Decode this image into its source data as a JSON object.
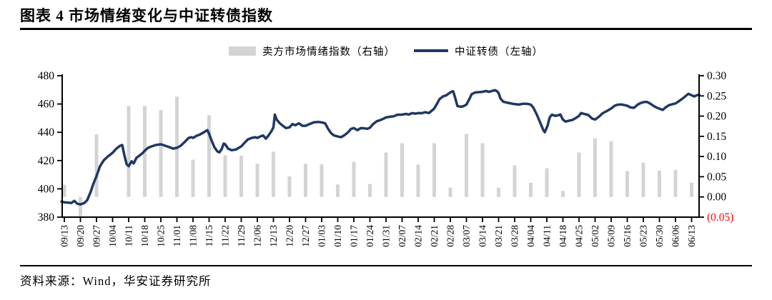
{
  "title": "图表 4 市场情绪变化与中证转债指数",
  "source": "资料来源：Wind，华安证券研究所",
  "colors": {
    "line": "#1f3864",
    "bar": "#d4d4d4",
    "axis": "#000000",
    "text": "#000000",
    "negative_tick": "#ff0000"
  },
  "legend": [
    {
      "label": "卖方市场情绪指数（右轴）",
      "type": "bar"
    },
    {
      "label": "中证转债（左轴）",
      "type": "line"
    }
  ],
  "chart_data": {
    "type": "bar+line",
    "title": "图表 4 市场情绪变化与中证转债指数",
    "grid": "off",
    "legend_position": "top-center",
    "categories": [
      "09/13",
      "09/20",
      "09/27",
      "10/04",
      "10/11",
      "10/18",
      "10/25",
      "11/01",
      "11/08",
      "11/15",
      "11/22",
      "11/29",
      "12/06",
      "12/13",
      "12/20",
      "12/27",
      "01/03",
      "01/10",
      "01/17",
      "01/24",
      "01/31",
      "02/07",
      "02/14",
      "02/21",
      "02/28",
      "03/07",
      "03/14",
      "03/21",
      "03/28",
      "04/04",
      "04/11",
      "04/18",
      "04/25",
      "05/02",
      "05/09",
      "05/16",
      "05/23",
      "05/30",
      "06/06",
      "06/13"
    ],
    "left_axis": {
      "label": "中证转债",
      "min": 380,
      "max": 480,
      "ticks": [
        480,
        460,
        440,
        420,
        400,
        380
      ]
    },
    "right_axis": {
      "label": "卖方市场情绪指数",
      "min": -0.05,
      "max": 0.3,
      "tick_labels": [
        "0.30",
        "0.25",
        "0.20",
        "0.15",
        "0.10",
        "0.05",
        "0.00",
        "(0.05)"
      ],
      "tick_values": [
        0.3,
        0.25,
        0.2,
        0.15,
        0.1,
        0.05,
        0.0,
        -0.05
      ]
    },
    "series": [
      {
        "name": "卖方市场情绪指数（右轴）",
        "type": "bar",
        "axis": "right",
        "values": [
          0.03,
          -0.048,
          0.155,
          null,
          0.225,
          0.225,
          0.215,
          0.248,
          0.092,
          0.202,
          0.103,
          0.102,
          0.082,
          0.112,
          0.051,
          0.082,
          0.081,
          0.031,
          0.087,
          0.032,
          0.11,
          0.133,
          0.08,
          0.133,
          0.023,
          0.156,
          0.133,
          0.023,
          0.078,
          0.035,
          0.071,
          0.015,
          0.11,
          0.145,
          0.138,
          0.064,
          0.085,
          0.065,
          0.067,
          0.035
        ]
      },
      {
        "name": "中证转债（左轴）",
        "type": "line",
        "axis": "left",
        "points": [
          [
            -0.18,
            391
          ],
          [
            0,
            390.5
          ],
          [
            0.3,
            390.2
          ],
          [
            0.44,
            390
          ],
          [
            0.62,
            391.5
          ],
          [
            0.8,
            389.5
          ],
          [
            1,
            389
          ],
          [
            1.24,
            390
          ],
          [
            1.42,
            392
          ],
          [
            1.64,
            398
          ],
          [
            1.82,
            404
          ],
          [
            2,
            409
          ],
          [
            2.22,
            416
          ],
          [
            2.44,
            420
          ],
          [
            2.67,
            422.5
          ],
          [
            3,
            425.5
          ],
          [
            3.24,
            428.5
          ],
          [
            3.47,
            430.5
          ],
          [
            3.6,
            431
          ],
          [
            3.73,
            424
          ],
          [
            3.87,
            417.5
          ],
          [
            4,
            416
          ],
          [
            4.18,
            419.5
          ],
          [
            4.31,
            418
          ],
          [
            4.49,
            422
          ],
          [
            4.67,
            423.5
          ],
          [
            4.89,
            425.5
          ],
          [
            5,
            427
          ],
          [
            5.2,
            429
          ],
          [
            5.42,
            430
          ],
          [
            5.69,
            431
          ],
          [
            6,
            431.5
          ],
          [
            6.27,
            430.5
          ],
          [
            6.53,
            429.5
          ],
          [
            6.76,
            428.5
          ],
          [
            7,
            429
          ],
          [
            7.24,
            430.5
          ],
          [
            7.51,
            433.5
          ],
          [
            7.73,
            436
          ],
          [
            7.91,
            436.5
          ],
          [
            8,
            436
          ],
          [
            8.22,
            437.5
          ],
          [
            8.44,
            438.5
          ],
          [
            8.67,
            440
          ],
          [
            8.89,
            441.5
          ],
          [
            9,
            439
          ],
          [
            9.16,
            434
          ],
          [
            9.33,
            429.5
          ],
          [
            9.51,
            426.5
          ],
          [
            9.64,
            425.8
          ],
          [
            9.78,
            428
          ],
          [
            9.91,
            432
          ],
          [
            10,
            431.5
          ],
          [
            10.18,
            428.5
          ],
          [
            10.4,
            427.3
          ],
          [
            10.67,
            427.8
          ],
          [
            10.84,
            429
          ],
          [
            11,
            430
          ],
          [
            11.2,
            432.5
          ],
          [
            11.42,
            435
          ],
          [
            11.64,
            436
          ],
          [
            11.87,
            436.5
          ],
          [
            12,
            436
          ],
          [
            12.18,
            437
          ],
          [
            12.36,
            437.8
          ],
          [
            12.53,
            435.5
          ],
          [
            12.71,
            438
          ],
          [
            12.89,
            441
          ],
          [
            13,
            443.5
          ],
          [
            13.09,
            452.5
          ],
          [
            13.2,
            449
          ],
          [
            13.38,
            446.5
          ],
          [
            13.6,
            444.5
          ],
          [
            13.78,
            443
          ],
          [
            14,
            443.5
          ],
          [
            14.18,
            445.8
          ],
          [
            14.36,
            445
          ],
          [
            14.58,
            446.3
          ],
          [
            14.8,
            444.6
          ],
          [
            15,
            444.6
          ],
          [
            15.24,
            445.8
          ],
          [
            15.51,
            447
          ],
          [
            15.78,
            447.3
          ],
          [
            16,
            447
          ],
          [
            16.22,
            446.3
          ],
          [
            16.4,
            442.5
          ],
          [
            16.58,
            439.5
          ],
          [
            16.76,
            437.8
          ],
          [
            17,
            437
          ],
          [
            17.2,
            436.5
          ],
          [
            17.42,
            438
          ],
          [
            17.64,
            440
          ],
          [
            17.82,
            442.3
          ],
          [
            18,
            443
          ],
          [
            18.22,
            441.5
          ],
          [
            18.44,
            443
          ],
          [
            18.67,
            442.8
          ],
          [
            18.84,
            442.5
          ],
          [
            19,
            443.2
          ],
          [
            19.2,
            445.8
          ],
          [
            19.42,
            447.8
          ],
          [
            19.64,
            448.6
          ],
          [
            19.82,
            449.5
          ],
          [
            20,
            450.5
          ],
          [
            20.27,
            451
          ],
          [
            20.49,
            451.3
          ],
          [
            20.67,
            452.3
          ],
          [
            21,
            452.5
          ],
          [
            21.24,
            453
          ],
          [
            21.42,
            452.6
          ],
          [
            21.64,
            453.6
          ],
          [
            21.82,
            453.2
          ],
          [
            22,
            453.6
          ],
          [
            22.22,
            453.5
          ],
          [
            22.44,
            454.2
          ],
          [
            22.67,
            453.6
          ],
          [
            22.84,
            455.2
          ],
          [
            23,
            456.8
          ],
          [
            23.16,
            460
          ],
          [
            23.33,
            463.5
          ],
          [
            23.56,
            465.5
          ],
          [
            23.73,
            466
          ],
          [
            23.91,
            467.5
          ],
          [
            24.09,
            468.8
          ],
          [
            24.18,
            469
          ],
          [
            24.31,
            464
          ],
          [
            24.44,
            458.6
          ],
          [
            24.67,
            458
          ],
          [
            24.84,
            458.6
          ],
          [
            25,
            459.6
          ],
          [
            25.16,
            463
          ],
          [
            25.33,
            467
          ],
          [
            25.56,
            468.2
          ],
          [
            25.78,
            468.4
          ],
          [
            26,
            468.6
          ],
          [
            26.22,
            469.2
          ],
          [
            26.4,
            468.6
          ],
          [
            26.58,
            469.2
          ],
          [
            26.76,
            469.8
          ],
          [
            26.89,
            469.2
          ],
          [
            27,
            467.8
          ],
          [
            27.11,
            464
          ],
          [
            27.29,
            461.6
          ],
          [
            27.51,
            461
          ],
          [
            27.73,
            460.5
          ],
          [
            28,
            459.9
          ],
          [
            28.27,
            459.6
          ],
          [
            28.53,
            460.2
          ],
          [
            28.8,
            460.1
          ],
          [
            29,
            459.6
          ],
          [
            29.16,
            457.5
          ],
          [
            29.38,
            452.5
          ],
          [
            29.6,
            446.5
          ],
          [
            29.78,
            441.5
          ],
          [
            29.87,
            440
          ],
          [
            30.04,
            444.5
          ],
          [
            30.18,
            450.5
          ],
          [
            30.31,
            452.4
          ],
          [
            30.53,
            451.6
          ],
          [
            30.71,
            452
          ],
          [
            30.84,
            452.6
          ],
          [
            31,
            449
          ],
          [
            31.16,
            447.6
          ],
          [
            31.38,
            448.2
          ],
          [
            31.6,
            448.8
          ],
          [
            31.82,
            450.2
          ],
          [
            32,
            451.6
          ],
          [
            32.13,
            453.6
          ],
          [
            32.36,
            452.9
          ],
          [
            32.58,
            452.2
          ],
          [
            32.8,
            449.8
          ],
          [
            33,
            449
          ],
          [
            33.24,
            451
          ],
          [
            33.47,
            453.5
          ],
          [
            33.73,
            455
          ],
          [
            34,
            456.8
          ],
          [
            34.22,
            458.8
          ],
          [
            34.4,
            459.5
          ],
          [
            34.62,
            459.7
          ],
          [
            34.84,
            459.2
          ],
          [
            35,
            458.8
          ],
          [
            35.2,
            457.6
          ],
          [
            35.42,
            457.3
          ],
          [
            35.64,
            459.5
          ],
          [
            35.82,
            460.6
          ],
          [
            36,
            461.3
          ],
          [
            36.22,
            461.5
          ],
          [
            36.44,
            460.2
          ],
          [
            36.67,
            458.4
          ],
          [
            36.84,
            457.4
          ],
          [
            37,
            456.7
          ],
          [
            37.2,
            455.8
          ],
          [
            37.38,
            457.6
          ],
          [
            37.6,
            459.2
          ],
          [
            37.82,
            459.9
          ],
          [
            38,
            460.4
          ],
          [
            38.22,
            462
          ],
          [
            38.44,
            463.8
          ],
          [
            38.67,
            466
          ],
          [
            38.8,
            467.2
          ],
          [
            39,
            466.2
          ],
          [
            39.16,
            465.3
          ],
          [
            39.33,
            466.2
          ],
          [
            39.47,
            466.6
          ]
        ]
      }
    ]
  }
}
